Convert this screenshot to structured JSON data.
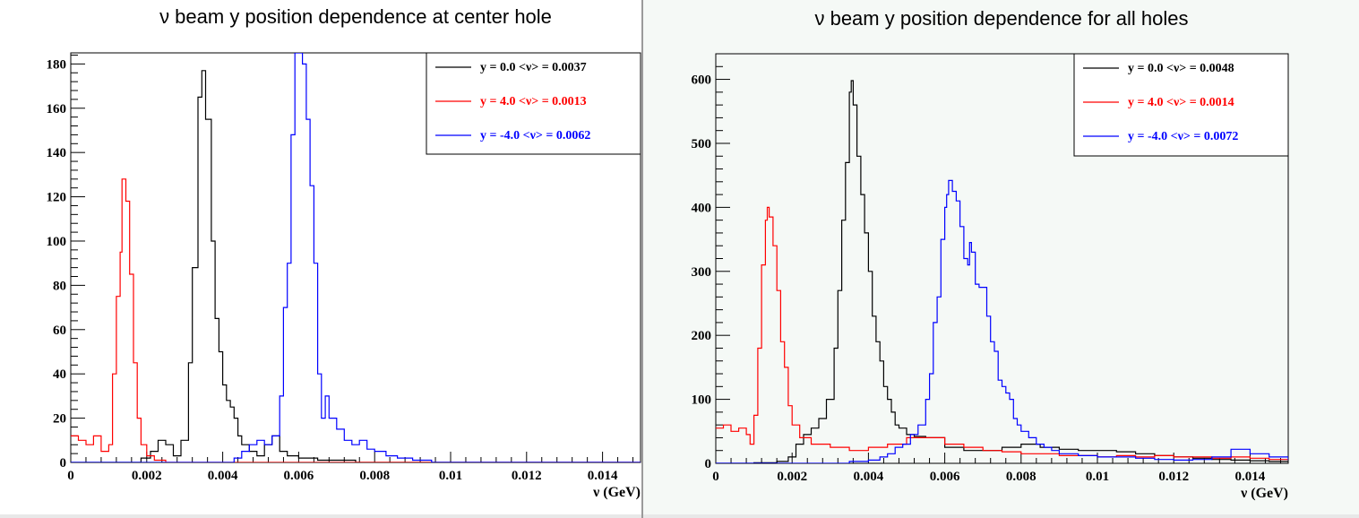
{
  "chart_data": [
    {
      "type": "line",
      "title": "ν beam y position dependence at center hole",
      "xlabel": "ν (GeV)",
      "ylabel": "",
      "xlim": [
        0,
        0.015
      ],
      "ylim": [
        0,
        185
      ],
      "xticks": [
        0,
        0.002,
        0.004,
        0.006,
        0.008,
        0.01,
        0.012,
        0.014
      ],
      "xtick_labels": [
        "0",
        "0.002",
        "0.004",
        "0.006",
        "0.008",
        "0.01",
        "0.012",
        "0.014"
      ],
      "yticks": [
        0,
        20,
        40,
        60,
        80,
        100,
        120,
        140,
        160,
        180
      ],
      "ytick_labels": [
        "0",
        "20",
        "40",
        "60",
        "80",
        "100",
        "120",
        "140",
        "160",
        "180"
      ],
      "legend_position": "top-right",
      "series": [
        {
          "name": "y = 0.0 <ν> = 0.0037",
          "color": "#000000",
          "points": [
            [
              0,
              0
            ],
            [
              0.0015,
              0
            ],
            [
              0.00185,
              2
            ],
            [
              0.0021,
              5
            ],
            [
              0.0023,
              10
            ],
            [
              0.0025,
              8
            ],
            [
              0.0027,
              3
            ],
            [
              0.0029,
              10
            ],
            [
              0.0031,
              45
            ],
            [
              0.0032,
              88
            ],
            [
              0.00335,
              165
            ],
            [
              0.00345,
              177
            ],
            [
              0.00355,
              155
            ],
            [
              0.0037,
              100
            ],
            [
              0.0038,
              65
            ],
            [
              0.0039,
              50
            ],
            [
              0.004,
              35
            ],
            [
              0.0041,
              28
            ],
            [
              0.0042,
              25
            ],
            [
              0.0043,
              20
            ],
            [
              0.0044,
              12
            ],
            [
              0.0045,
              8
            ],
            [
              0.0047,
              5
            ],
            [
              0.0049,
              3
            ],
            [
              0.0051,
              8
            ],
            [
              0.0053,
              12
            ],
            [
              0.0055,
              5
            ],
            [
              0.0057,
              3
            ],
            [
              0.006,
              2
            ],
            [
              0.0065,
              1
            ],
            [
              0.007,
              1
            ],
            [
              0.0075,
              0
            ],
            [
              0.015,
              0
            ]
          ]
        },
        {
          "name": "y = 4.0 <ν> = 0.0013",
          "color": "#ff0000",
          "points": [
            [
              0,
              12
            ],
            [
              0.0002,
              10
            ],
            [
              0.0004,
              8
            ],
            [
              0.0006,
              12
            ],
            [
              0.0008,
              5
            ],
            [
              0.001,
              8
            ],
            [
              0.0011,
              40
            ],
            [
              0.0012,
              75
            ],
            [
              0.0013,
              95
            ],
            [
              0.00135,
              128
            ],
            [
              0.00145,
              118
            ],
            [
              0.00155,
              85
            ],
            [
              0.00165,
              45
            ],
            [
              0.00175,
              20
            ],
            [
              0.00185,
              8
            ],
            [
              0.002,
              3
            ],
            [
              0.0022,
              1
            ],
            [
              0.0025,
              0
            ],
            [
              0.015,
              0
            ]
          ]
        },
        {
          "name": "y = -4.0 <ν> = 0.0062",
          "color": "#0000ff",
          "points": [
            [
              0,
              0
            ],
            [
              0.004,
              0
            ],
            [
              0.0043,
              2
            ],
            [
              0.0045,
              5
            ],
            [
              0.0047,
              8
            ],
            [
              0.0049,
              10
            ],
            [
              0.0051,
              8
            ],
            [
              0.0053,
              12
            ],
            [
              0.0055,
              30
            ],
            [
              0.0056,
              70
            ],
            [
              0.0057,
              90
            ],
            [
              0.0058,
              148
            ],
            [
              0.0059,
              185
            ],
            [
              0.0061,
              180
            ],
            [
              0.0062,
              155
            ],
            [
              0.0063,
              125
            ],
            [
              0.0064,
              90
            ],
            [
              0.0065,
              40
            ],
            [
              0.0066,
              20
            ],
            [
              0.0067,
              30
            ],
            [
              0.0068,
              20
            ],
            [
              0.007,
              15
            ],
            [
              0.0072,
              10
            ],
            [
              0.0074,
              8
            ],
            [
              0.0076,
              10
            ],
            [
              0.0078,
              6
            ],
            [
              0.008,
              5
            ],
            [
              0.0083,
              3
            ],
            [
              0.0086,
              2
            ],
            [
              0.009,
              1
            ],
            [
              0.0095,
              0
            ],
            [
              0.015,
              0
            ]
          ]
        }
      ]
    },
    {
      "type": "line",
      "title": "ν beam y position dependence for all holes",
      "xlabel": "ν (GeV)",
      "ylabel": "",
      "xlim": [
        0,
        0.015
      ],
      "ylim": [
        0,
        640
      ],
      "xticks": [
        0,
        0.002,
        0.004,
        0.006,
        0.008,
        0.01,
        0.012,
        0.014
      ],
      "xtick_labels": [
        "0",
        "0.002",
        "0.004",
        "0.006",
        "0.008",
        "0.01",
        "0.012",
        "0.014"
      ],
      "yticks": [
        0,
        100,
        200,
        300,
        400,
        500,
        600
      ],
      "ytick_labels": [
        "0",
        "100",
        "200",
        "300",
        "400",
        "500",
        "600"
      ],
      "legend_position": "top-right",
      "series": [
        {
          "name": "y = 0.0 <ν> = 0.0048",
          "color": "#000000",
          "points": [
            [
              0,
              0
            ],
            [
              0.001,
              1
            ],
            [
              0.0016,
              3
            ],
            [
              0.0019,
              10
            ],
            [
              0.0021,
              30
            ],
            [
              0.0023,
              45
            ],
            [
              0.0025,
              55
            ],
            [
              0.0027,
              70
            ],
            [
              0.0029,
              100
            ],
            [
              0.0031,
              180
            ],
            [
              0.0032,
              270
            ],
            [
              0.0033,
              380
            ],
            [
              0.0034,
              470
            ],
            [
              0.0035,
              580
            ],
            [
              0.00355,
              598
            ],
            [
              0.0036,
              560
            ],
            [
              0.0037,
              480
            ],
            [
              0.0038,
              420
            ],
            [
              0.0039,
              360
            ],
            [
              0.004,
              300
            ],
            [
              0.0041,
              230
            ],
            [
              0.0042,
              190
            ],
            [
              0.0043,
              160
            ],
            [
              0.0044,
              120
            ],
            [
              0.0045,
              100
            ],
            [
              0.0046,
              80
            ],
            [
              0.0047,
              60
            ],
            [
              0.0048,
              55
            ],
            [
              0.005,
              45
            ],
            [
              0.0052,
              42
            ],
            [
              0.0055,
              40
            ],
            [
              0.006,
              25
            ],
            [
              0.0065,
              20
            ],
            [
              0.007,
              20
            ],
            [
              0.0075,
              25
            ],
            [
              0.008,
              30
            ],
            [
              0.0085,
              25
            ],
            [
              0.009,
              22
            ],
            [
              0.0095,
              20
            ],
            [
              0.01,
              20
            ],
            [
              0.0105,
              18
            ],
            [
              0.011,
              15
            ],
            [
              0.0115,
              12
            ],
            [
              0.012,
              10
            ],
            [
              0.0125,
              8
            ],
            [
              0.013,
              6
            ],
            [
              0.0135,
              5
            ],
            [
              0.014,
              4
            ],
            [
              0.0145,
              3
            ],
            [
              0.015,
              2
            ]
          ]
        },
        {
          "name": "y = 4.0 <ν> = 0.0014",
          "color": "#ff0000",
          "points": [
            [
              0,
              55
            ],
            [
              0.0002,
              60
            ],
            [
              0.0004,
              50
            ],
            [
              0.0006,
              55
            ],
            [
              0.0008,
              45
            ],
            [
              0.0009,
              30
            ],
            [
              0.001,
              75
            ],
            [
              0.0011,
              180
            ],
            [
              0.0012,
              310
            ],
            [
              0.0013,
              380
            ],
            [
              0.00135,
              400
            ],
            [
              0.0014,
              385
            ],
            [
              0.0015,
              340
            ],
            [
              0.0016,
              270
            ],
            [
              0.0017,
              190
            ],
            [
              0.0018,
              150
            ],
            [
              0.0019,
              90
            ],
            [
              0.002,
              60
            ],
            [
              0.0022,
              40
            ],
            [
              0.0025,
              30
            ],
            [
              0.003,
              25
            ],
            [
              0.0035,
              20
            ],
            [
              0.004,
              25
            ],
            [
              0.0045,
              30
            ],
            [
              0.005,
              40
            ],
            [
              0.0055,
              40
            ],
            [
              0.006,
              30
            ],
            [
              0.0065,
              25
            ],
            [
              0.007,
              20
            ],
            [
              0.0075,
              18
            ],
            [
              0.008,
              15
            ],
            [
              0.0085,
              15
            ],
            [
              0.009,
              12
            ],
            [
              0.0095,
              12
            ],
            [
              0.01,
              10
            ],
            [
              0.0105,
              12
            ],
            [
              0.011,
              10
            ],
            [
              0.0115,
              12
            ],
            [
              0.012,
              10
            ],
            [
              0.0125,
              10
            ],
            [
              0.013,
              8
            ],
            [
              0.0135,
              10
            ],
            [
              0.014,
              8
            ],
            [
              0.0145,
              6
            ],
            [
              0.015,
              5
            ]
          ]
        },
        {
          "name": "y = -4.0 <ν> = 0.0072",
          "color": "#0000ff",
          "points": [
            [
              0,
              0
            ],
            [
              0.003,
              0
            ],
            [
              0.0035,
              3
            ],
            [
              0.004,
              5
            ],
            [
              0.0043,
              10
            ],
            [
              0.0045,
              15
            ],
            [
              0.0047,
              25
            ],
            [
              0.0049,
              30
            ],
            [
              0.0051,
              45
            ],
            [
              0.0053,
              60
            ],
            [
              0.0055,
              100
            ],
            [
              0.0056,
              140
            ],
            [
              0.0057,
              220
            ],
            [
              0.0058,
              260
            ],
            [
              0.0059,
              350
            ],
            [
              0.006,
              400
            ],
            [
              0.00605,
              420
            ],
            [
              0.0061,
              442
            ],
            [
              0.0062,
              425
            ],
            [
              0.0063,
              410
            ],
            [
              0.0064,
              370
            ],
            [
              0.0065,
              320
            ],
            [
              0.0066,
              310
            ],
            [
              0.00665,
              345
            ],
            [
              0.0067,
              330
            ],
            [
              0.0068,
              280
            ],
            [
              0.0069,
              275
            ],
            [
              0.007,
              275
            ],
            [
              0.0071,
              230
            ],
            [
              0.0072,
              190
            ],
            [
              0.0073,
              175
            ],
            [
              0.0074,
              130
            ],
            [
              0.0075,
              120
            ],
            [
              0.0076,
              110
            ],
            [
              0.0077,
              100
            ],
            [
              0.0078,
              70
            ],
            [
              0.0079,
              60
            ],
            [
              0.008,
              50
            ],
            [
              0.0082,
              40
            ],
            [
              0.0084,
              30
            ],
            [
              0.0086,
              25
            ],
            [
              0.0088,
              20
            ],
            [
              0.009,
              15
            ],
            [
              0.0095,
              12
            ],
            [
              0.01,
              10
            ],
            [
              0.0105,
              10
            ],
            [
              0.011,
              8
            ],
            [
              0.0115,
              6
            ],
            [
              0.012,
              5
            ],
            [
              0.0125,
              6
            ],
            [
              0.013,
              10
            ],
            [
              0.0135,
              22
            ],
            [
              0.014,
              15
            ],
            [
              0.0145,
              10
            ],
            [
              0.015,
              5
            ]
          ]
        }
      ]
    }
  ]
}
